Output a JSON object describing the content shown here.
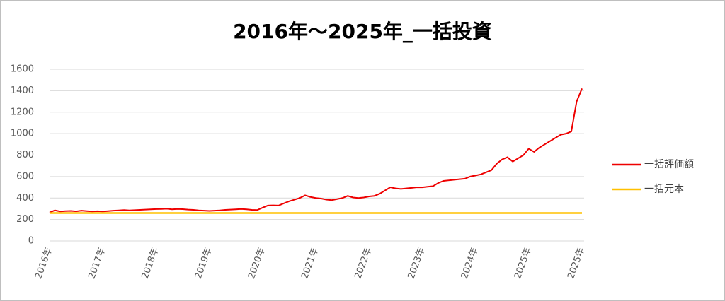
{
  "chart_data": {
    "type": "line",
    "title": "2016年～2025年_一括投資",
    "categories": [
      "2016年",
      null,
      null,
      null,
      null,
      null,
      null,
      null,
      null,
      null,
      "2017年",
      null,
      null,
      null,
      null,
      null,
      null,
      null,
      null,
      null,
      "2018年",
      null,
      null,
      null,
      null,
      null,
      null,
      null,
      null,
      null,
      "2019年",
      null,
      null,
      null,
      null,
      null,
      null,
      null,
      null,
      null,
      "2020年",
      null,
      null,
      null,
      null,
      null,
      null,
      null,
      null,
      null,
      "2021年",
      null,
      null,
      null,
      null,
      null,
      null,
      null,
      null,
      null,
      "2022年",
      null,
      null,
      null,
      null,
      null,
      null,
      null,
      null,
      null,
      "2023年",
      null,
      null,
      null,
      null,
      null,
      null,
      null,
      null,
      null,
      "2024年",
      null,
      null,
      null,
      null,
      null,
      null,
      null,
      null,
      null,
      "2025年",
      null,
      null,
      null,
      null,
      null,
      null,
      null,
      null,
      null,
      "2025年"
    ],
    "series": [
      {
        "name": "一括評価額",
        "color": "#ee0000",
        "values": [
          265,
          285,
          275,
          278,
          280,
          276,
          282,
          278,
          275,
          277,
          275,
          278,
          282,
          285,
          288,
          285,
          287,
          290,
          292,
          295,
          297,
          298,
          300,
          295,
          298,
          296,
          292,
          290,
          285,
          282,
          280,
          282,
          285,
          290,
          292,
          295,
          298,
          295,
          290,
          288,
          310,
          330,
          332,
          330,
          350,
          370,
          385,
          400,
          425,
          410,
          400,
          395,
          385,
          380,
          390,
          400,
          420,
          405,
          400,
          405,
          415,
          420,
          440,
          470,
          500,
          490,
          485,
          490,
          495,
          500,
          500,
          505,
          510,
          540,
          560,
          565,
          570,
          575,
          580,
          600,
          610,
          620,
          640,
          660,
          720,
          760,
          780,
          740,
          770,
          800,
          860,
          830,
          870,
          900,
          930,
          960,
          990,
          1000,
          1020,
          1300,
          1420
        ]
      },
      {
        "name": "一括元本",
        "color": "#ffc000",
        "values": [
          260,
          260,
          260,
          260,
          260,
          260,
          260,
          260,
          260,
          260,
          260,
          260,
          260,
          260,
          260,
          260,
          260,
          260,
          260,
          260,
          260,
          260,
          260,
          260,
          260,
          260,
          260,
          260,
          260,
          260,
          260,
          260,
          260,
          260,
          260,
          260,
          260,
          260,
          260,
          260,
          260,
          260,
          260,
          260,
          260,
          260,
          260,
          260,
          260,
          260,
          260,
          260,
          260,
          260,
          260,
          260,
          260,
          260,
          260,
          260,
          260,
          260,
          260,
          260,
          260,
          260,
          260,
          260,
          260,
          260,
          260,
          260,
          260,
          260,
          260,
          260,
          260,
          260,
          260,
          260,
          260,
          260,
          260,
          260,
          260,
          260,
          260,
          260,
          260,
          260,
          260,
          260,
          260,
          260,
          260,
          260,
          260,
          260,
          260,
          260,
          260
        ]
      }
    ],
    "ylim": [
      0,
      1600
    ],
    "yticks": [
      0,
      200,
      400,
      600,
      800,
      1000,
      1200,
      1400,
      1600
    ],
    "grid": true,
    "legend": "right"
  }
}
